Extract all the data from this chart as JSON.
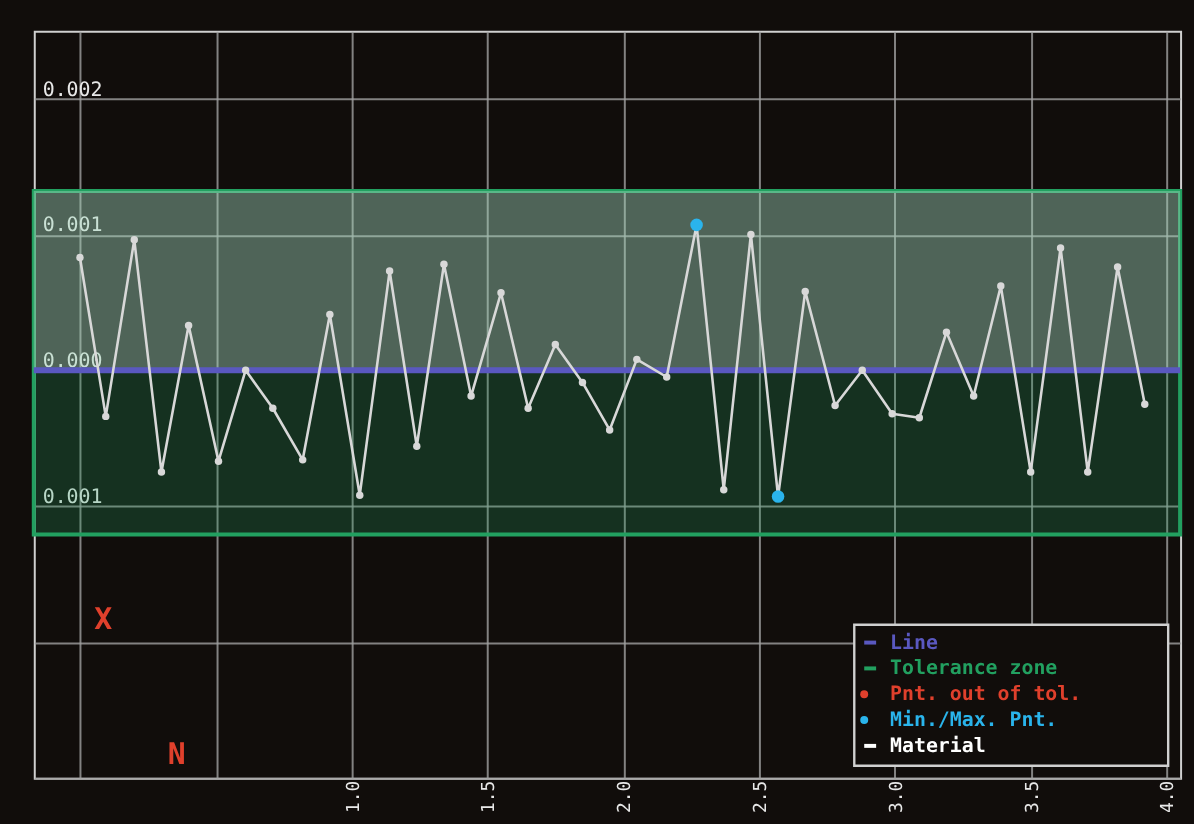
{
  "chart_data": {
    "type": "line",
    "marker": "circle",
    "grid": true,
    "legend": "bottom right",
    "xlim": [
      -0.17,
      4.05
    ],
    "ylim": [
      -0.003,
      0.0025
    ],
    "xticks": [
      {
        "value": 0,
        "label": null
      },
      {
        "value": 0.5,
        "label": null
      },
      {
        "value": 1,
        "label": "1.0"
      },
      {
        "value": 1.5,
        "label": "1.5"
      },
      {
        "value": 2,
        "label": "2.0"
      },
      {
        "value": 2.5,
        "label": "2.5"
      },
      {
        "value": 3,
        "label": "3.0"
      },
      {
        "value": 3.5,
        "label": "3.5"
      },
      {
        "value": 4,
        "label": "4.0"
      }
    ],
    "yticks": [
      {
        "value": 0.002,
        "label": "0.002"
      },
      {
        "value": 0.001,
        "label": "0.001"
      },
      {
        "value": 0,
        "label": "0.000"
      },
      {
        "value": -0.001,
        "label": "0.001"
      },
      {
        "value": -0.002,
        "label": null
      },
      {
        "value": -0.003,
        "label": null
      }
    ],
    "x": [
      0,
      0.095,
      0.2,
      0.3,
      0.4,
      0.51,
      0.61,
      0.71,
      0.82,
      0.92,
      1.03,
      1.14,
      1.24,
      1.34,
      1.44,
      1.55,
      1.65,
      1.75,
      1.85,
      1.95,
      2.05,
      2.16,
      2.27,
      2.37,
      2.47,
      2.57,
      2.67,
      2.78,
      2.88,
      2.99,
      3.09,
      3.19,
      3.29,
      3.39,
      3.5,
      3.61,
      3.71,
      3.82,
      3.92
    ],
    "series": [
      {
        "color": "#d8d8d8",
        "values": [
          0.00083,
          -0.00034,
          0.00096,
          -0.00075,
          0.00033,
          -0.00067,
          0,
          -0.00028,
          -0.00066,
          0.00041,
          -0.00092,
          0.00073,
          -0.00056,
          0.00078,
          -0.00019,
          0.00057,
          -0.00028,
          0.00019,
          -9e-05,
          -0.00044,
          8e-05,
          -5e-05,
          0.00107,
          -0.00088,
          0.001,
          -0.00093,
          0.00058,
          -0.00026,
          0,
          -0.00032,
          -0.00035,
          0.00028,
          -0.00019,
          0.00062,
          -0.00075,
          0.0009,
          -0.00075,
          0.00076,
          -0.00025
        ]
      },
      {
        "name": "Pnt. out of tol.",
        "type": "scatter",
        "color": "#e0402c",
        "values": [
          null,
          null,
          null,
          null,
          null,
          null,
          null,
          null,
          null,
          null,
          null,
          null,
          null,
          null,
          null,
          null,
          null,
          null,
          null,
          null,
          null,
          null,
          null,
          null,
          null,
          null,
          null,
          null,
          null,
          null,
          null,
          null,
          null,
          null,
          null,
          null,
          null,
          null,
          null
        ]
      },
      {
        "name": "Min./Max. Pnt.",
        "type": "scatter",
        "color": "#2ab4ec",
        "x": [
          2.27,
          2.57
        ],
        "values": [
          0.00107,
          -0.00093
        ]
      }
    ],
    "ref_lines": [
      {
        "axis": "y",
        "value": 0,
        "label": "Line",
        "color": "#5a58c0"
      }
    ],
    "bands": [
      {
        "axis": "y",
        "from": -0.00121,
        "to": 0.00132,
        "label": "Tolerance zone",
        "color": "#22a060"
      },
      {
        "axis": "y",
        "from": 0,
        "to": 0.00132,
        "label": "Material",
        "color": "#ffffff"
      }
    ],
    "annotations": [
      "X",
      "N"
    ]
  }
}
